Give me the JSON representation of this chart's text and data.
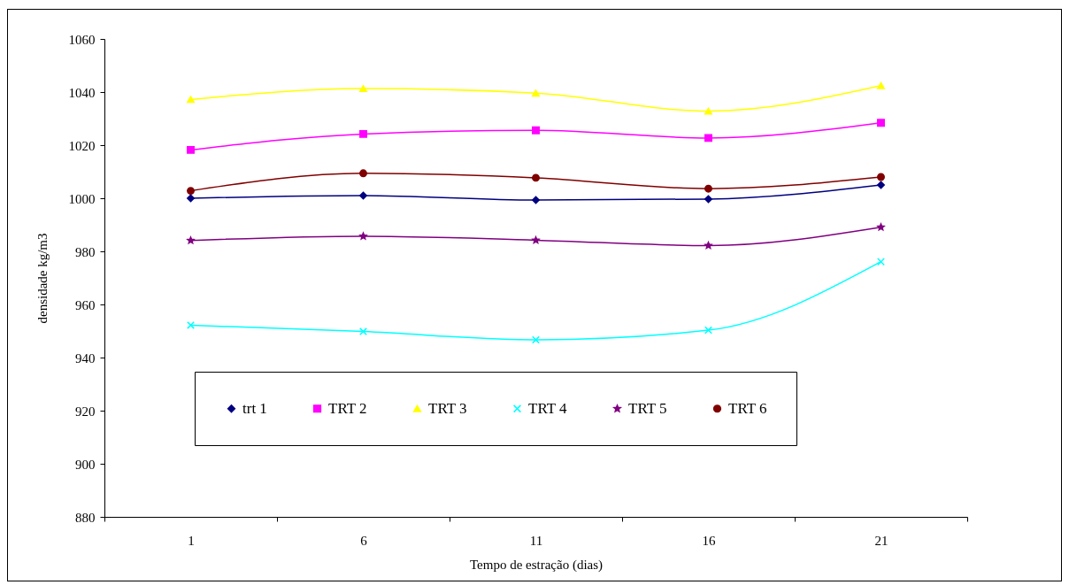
{
  "chart_data": {
    "type": "line",
    "xlabel": "Tempo de estração (dias)",
    "ylabel": "densidade kg/m3",
    "categories": [
      "1",
      "6",
      "11",
      "16",
      "21"
    ],
    "series": [
      {
        "name": "trt 1",
        "color": "#000080",
        "marker": "diamond",
        "values": [
          1000,
          1001,
          999.3,
          999.7,
          1005
        ]
      },
      {
        "name": "TRT 2",
        "color": "#ff00ff",
        "marker": "square",
        "values": [
          1018.2,
          1024.2,
          1025.6,
          1022.7,
          1028.4
        ]
      },
      {
        "name": "TRT 3",
        "color": "#ffff00",
        "marker": "triangle",
        "values": [
          1037.2,
          1041.3,
          1039.6,
          1032.8,
          1042.4
        ]
      },
      {
        "name": "TRT 4",
        "color": "#00ffff",
        "marker": "cross",
        "values": [
          952.2,
          949.8,
          946.7,
          950.3,
          976.1
        ]
      },
      {
        "name": "TRT 5",
        "color": "#800080",
        "marker": "star",
        "values": [
          984.1,
          985.7,
          984.2,
          982.2,
          989.1
        ]
      },
      {
        "name": "TRT 6",
        "color": "#800000",
        "marker": "circle",
        "values": [
          1002.8,
          1009.4,
          1007.7,
          1003.6,
          1008
        ]
      }
    ],
    "ylim": [
      880,
      1060
    ],
    "yticks": [
      880,
      900,
      920,
      940,
      960,
      980,
      1000,
      1020,
      1040,
      1060
    ],
    "grid": false,
    "legend": "bottom",
    "line_style": "solid"
  }
}
